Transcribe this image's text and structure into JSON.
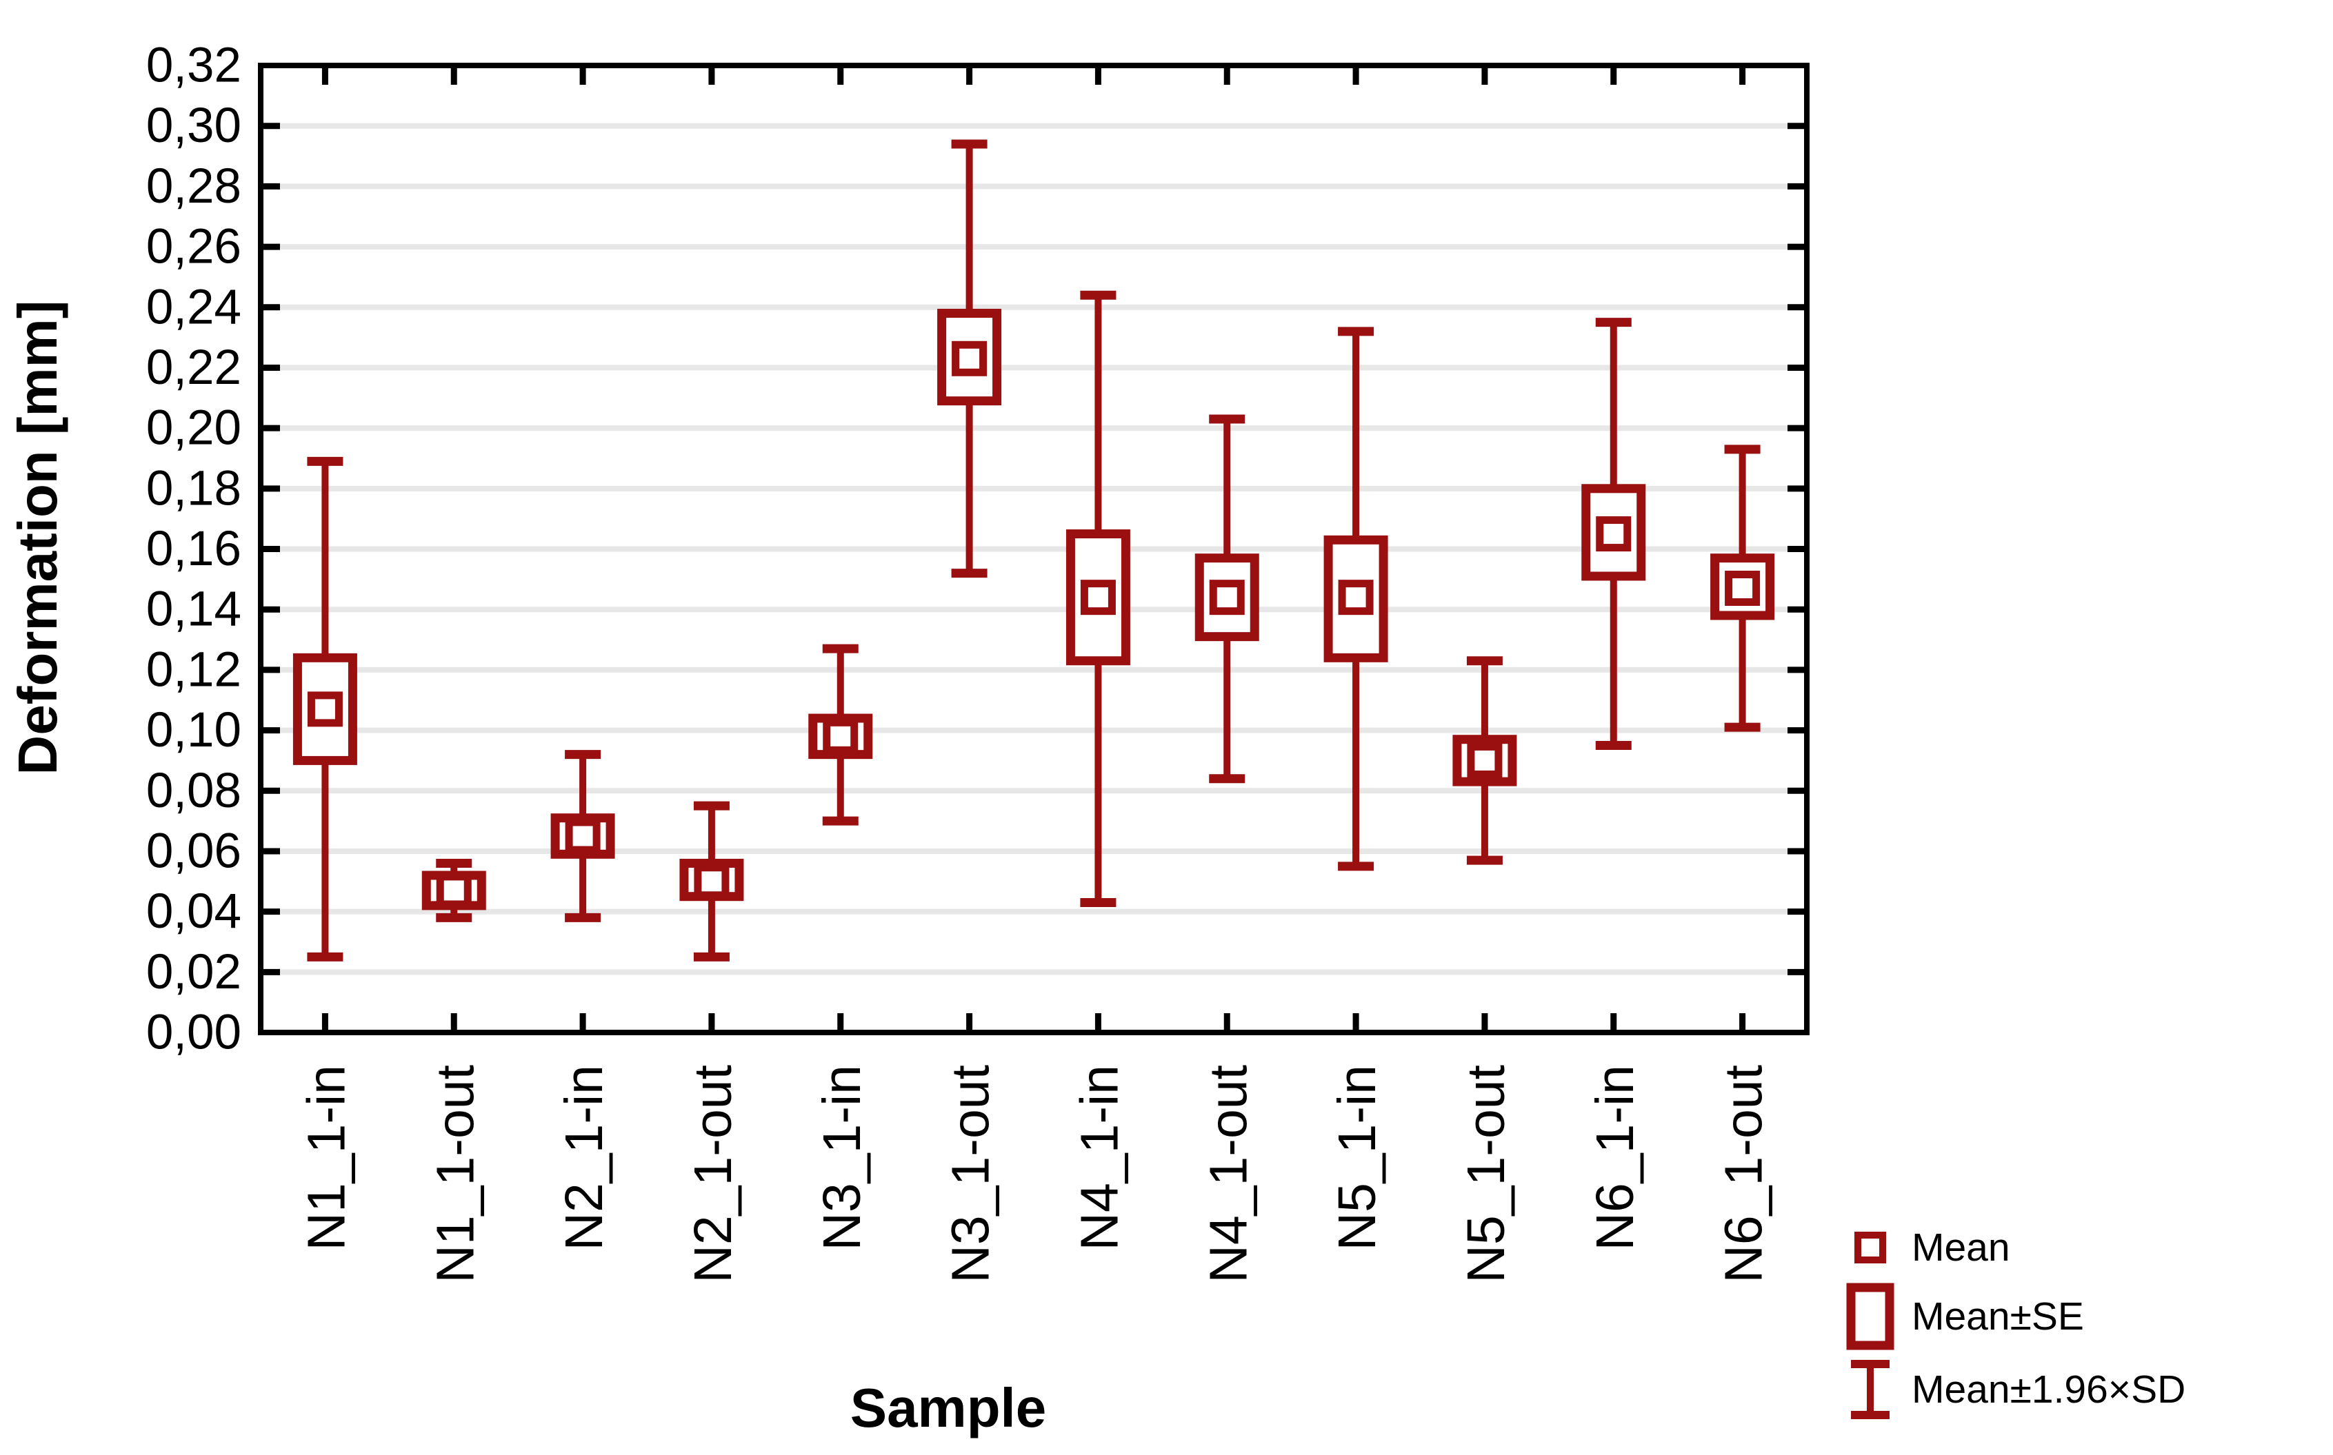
{
  "chart_data": {
    "type": "box-whisker",
    "title": "",
    "xlabel": "Sample",
    "ylabel": "Deformation [mm]",
    "y_axis": {
      "min": 0,
      "max": 0.32,
      "step": 0.02,
      "decimal_separator": ",",
      "grid": true,
      "tick_labels": [
        "0,00",
        "0,02",
        "0,04",
        "0,06",
        "0,08",
        "0,10",
        "0,12",
        "0,14",
        "0,16",
        "0,18",
        "0,20",
        "0,22",
        "0,24",
        "0,26",
        "0,28",
        "0,30",
        "0,32"
      ]
    },
    "categories": [
      "N1_1-in",
      "N1_1-out",
      "N2_1-in",
      "N2_1-out",
      "N3_1-in",
      "N3_1-out",
      "N4_1-in",
      "N4_1-out",
      "N5_1-in",
      "N5_1-out",
      "N6_1-in",
      "N6_1-out"
    ],
    "samples": [
      {
        "label": "N1_1-in",
        "mean": 0.107,
        "se": [
          0.09,
          0.124
        ],
        "sd196": [
          0.025,
          0.189
        ]
      },
      {
        "label": "N1_1-out",
        "mean": 0.047,
        "se": [
          0.042,
          0.052
        ],
        "sd196": [
          0.038,
          0.056
        ]
      },
      {
        "label": "N2_1-in",
        "mean": 0.065,
        "se": [
          0.059,
          0.071
        ],
        "sd196": [
          0.038,
          0.092
        ]
      },
      {
        "label": "N2_1-out",
        "mean": 0.05,
        "se": [
          0.045,
          0.056
        ],
        "sd196": [
          0.025,
          0.075
        ]
      },
      {
        "label": "N3_1-in",
        "mean": 0.098,
        "se": [
          0.092,
          0.104
        ],
        "sd196": [
          0.07,
          0.127
        ]
      },
      {
        "label": "N3_1-out",
        "mean": 0.223,
        "se": [
          0.209,
          0.238
        ],
        "sd196": [
          0.152,
          0.294
        ]
      },
      {
        "label": "N4_1-in",
        "mean": 0.144,
        "se": [
          0.123,
          0.165
        ],
        "sd196": [
          0.043,
          0.244
        ]
      },
      {
        "label": "N4_1-out",
        "mean": 0.144,
        "se": [
          0.131,
          0.157
        ],
        "sd196": [
          0.084,
          0.203
        ]
      },
      {
        "label": "N5_1-in",
        "mean": 0.144,
        "se": [
          0.124,
          0.163
        ],
        "sd196": [
          0.055,
          0.232
        ]
      },
      {
        "label": "N5_1-out",
        "mean": 0.09,
        "se": [
          0.083,
          0.097
        ],
        "sd196": [
          0.057,
          0.123
        ]
      },
      {
        "label": "N6_1-in",
        "mean": 0.165,
        "se": [
          0.151,
          0.18
        ],
        "sd196": [
          0.095,
          0.235
        ]
      },
      {
        "label": "N6_1-out",
        "mean": 0.147,
        "se": [
          0.138,
          0.157
        ],
        "sd196": [
          0.101,
          0.193
        ]
      }
    ],
    "legend": [
      {
        "label": "Mean",
        "marker": "mean-square"
      },
      {
        "label": "Mean±SE",
        "marker": "se-box"
      },
      {
        "label": "Mean±1.96×SD",
        "marker": "sd-whisker"
      }
    ],
    "legend_position": "bottom-right",
    "colors": {
      "series": "#9a0f0f",
      "grid": "#e7e7e7",
      "axis": "#000000",
      "text": "#000000",
      "background": "#ffffff"
    }
  }
}
